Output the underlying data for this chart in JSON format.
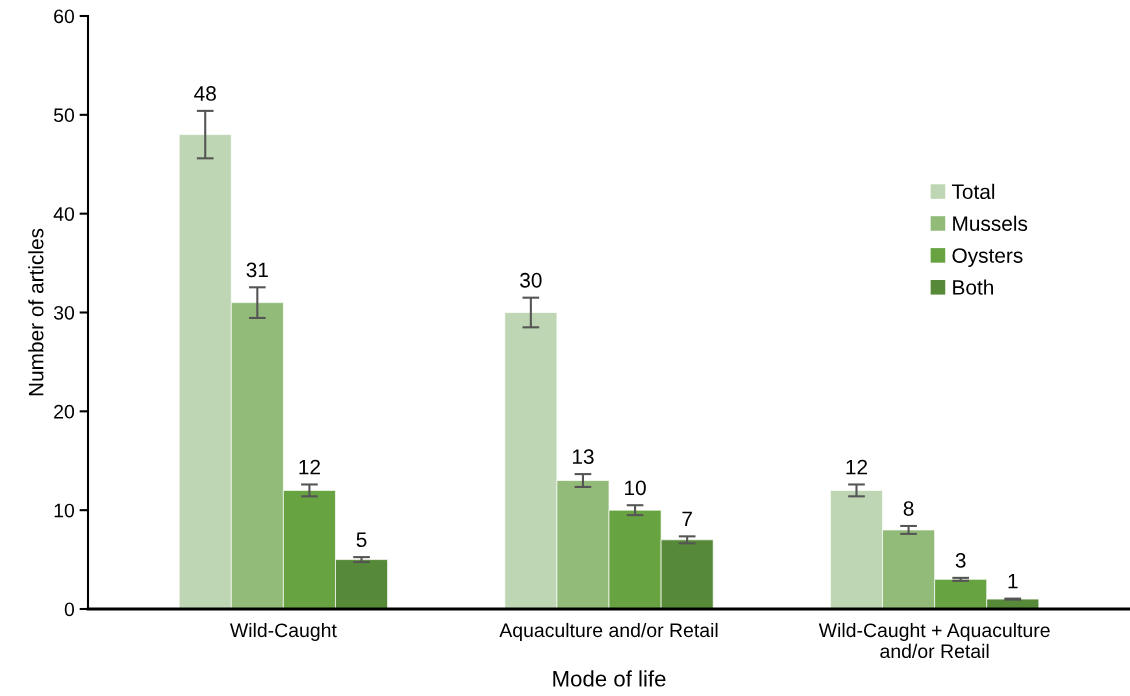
{
  "chart_data": {
    "type": "bar",
    "xlabel": "Mode of life",
    "ylabel": "Number of articles",
    "categories": [
      "Wild-Caught",
      "Aquaculture and/or Retail",
      "Wild-Caught + Aquaculture\nand/or Retail"
    ],
    "series": [
      {
        "name": "Total",
        "color": "#bed6b3",
        "values": [
          48,
          30,
          12
        ],
        "errors": [
          2.4,
          1.5,
          0.6
        ]
      },
      {
        "name": "Mussels",
        "color": "#92bb79",
        "values": [
          31,
          13,
          8
        ],
        "errors": [
          1.55,
          0.65,
          0.4
        ]
      },
      {
        "name": "Oysters",
        "color": "#68a342",
        "values": [
          12,
          10,
          3
        ],
        "errors": [
          0.6,
          0.5,
          0.15
        ]
      },
      {
        "name": "Both",
        "color": "#568a38",
        "values": [
          5,
          7,
          1
        ],
        "errors": [
          0.25,
          0.35,
          0.05
        ]
      }
    ],
    "ylim": [
      0,
      60
    ],
    "yticks": [
      0,
      10,
      20,
      30,
      40,
      50,
      60
    ],
    "grid": false,
    "legend": "right",
    "data_labels": true
  }
}
